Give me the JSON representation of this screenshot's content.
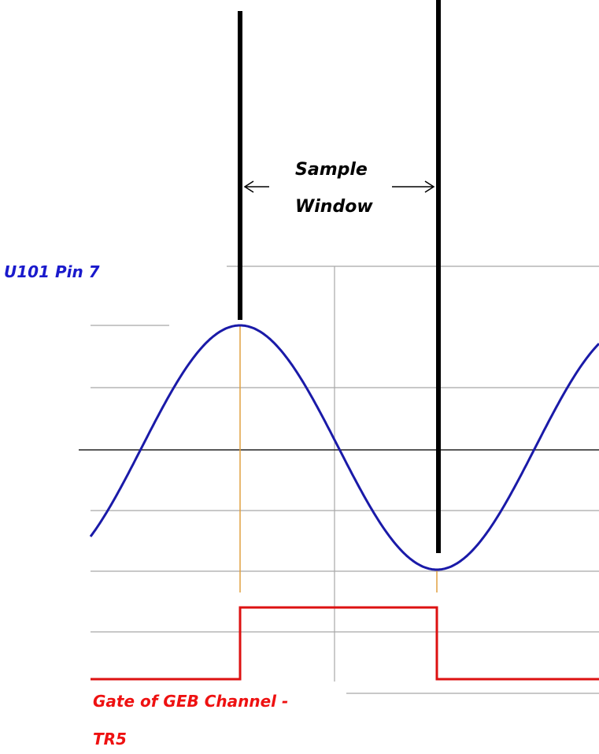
{
  "labels": {
    "sample": "Sample",
    "window": "Window",
    "signal": "U101 Pin 7",
    "gate_line1": "Gate of GEB Channel -",
    "gate_line2": "TR5"
  }
}
